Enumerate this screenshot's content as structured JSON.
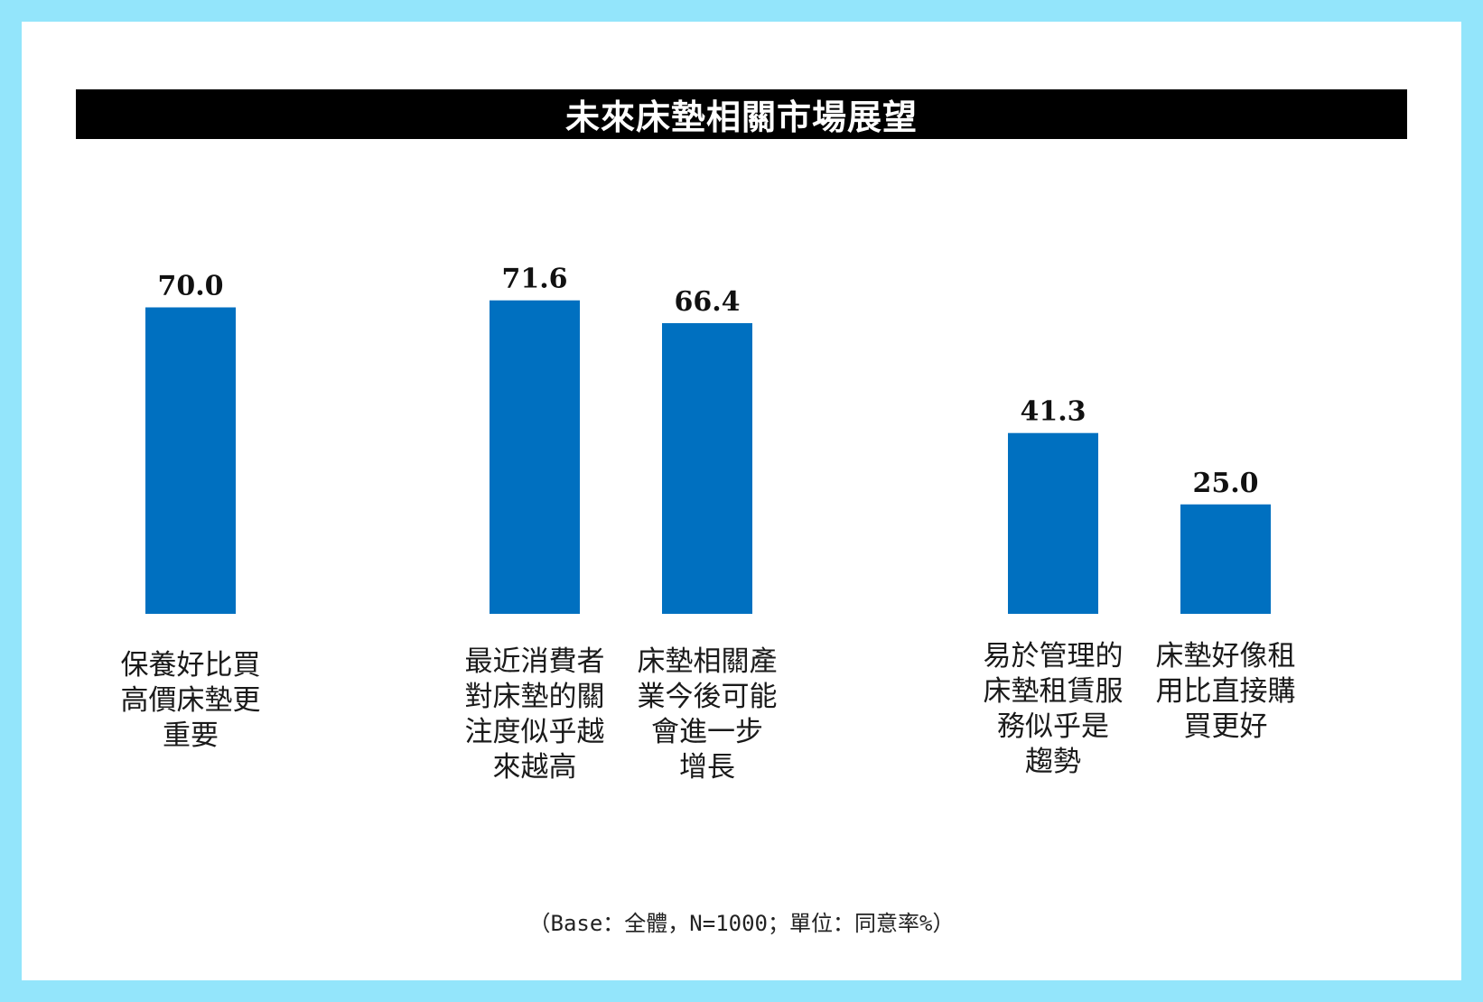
{
  "chart_data": {
    "type": "bar",
    "title": "未來床墊相關市場展望",
    "categories": [
      "保養好比買高價床墊更重要",
      "最近消費者對床墊的關注度似乎越來越高",
      "床墊相關產業今後可能會進一步增長",
      "易於管理的床墊租賃服務似乎是趨勢",
      "床墊好像租用比直接購買更好"
    ],
    "category_lines": [
      [
        "保養好比買",
        "高價床墊更",
        "重要"
      ],
      [
        "最近消費者",
        "對床墊的關",
        "注度似乎越",
        "來越高"
      ],
      [
        "床墊相關產",
        "業今後可能",
        "會進一步",
        "增長"
      ],
      [
        "易於管理的",
        "床墊租賃服",
        "務似乎是",
        "趨勢"
      ],
      [
        "床墊好像租",
        "用比直接購",
        "買更好"
      ]
    ],
    "values": [
      70.0,
      71.6,
      66.4,
      41.3,
      25.0
    ],
    "value_labels": [
      "70.0",
      "71.6",
      "66.4",
      "41.3",
      "25.0"
    ],
    "ylim": [
      0,
      100
    ],
    "grid": false,
    "legend": "none",
    "bar_color": "#0070c0",
    "footnote": "（Base：全體，N=1000；單位：同意率%）"
  }
}
